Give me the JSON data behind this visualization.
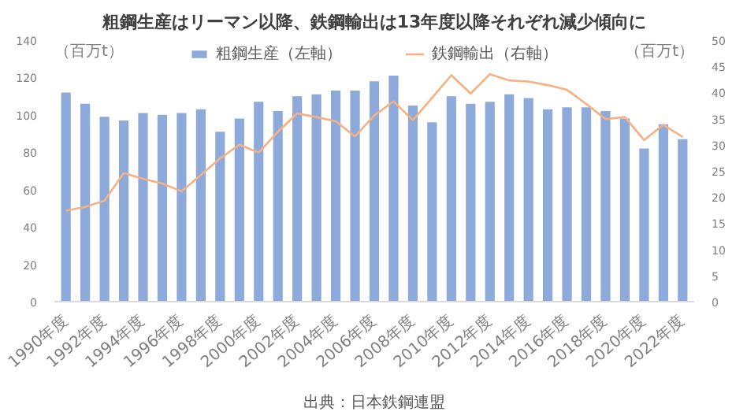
{
  "chart_data": {
    "type": "bar",
    "title": "粗鋼生産はリーマン以降、鉄鋼輸出は13年度以降それぞれ減少傾向に",
    "categories": [
      "1990年度",
      null,
      "1992年度",
      null,
      "1994年度",
      null,
      "1996年度",
      null,
      "1998年度",
      null,
      "2000年度",
      null,
      "2002年度",
      null,
      "2004年度",
      null,
      "2006年度",
      null,
      "2008年度",
      null,
      "2010年度",
      null,
      "2012年度",
      null,
      "2014年度",
      null,
      "2016年度",
      null,
      "2018年度",
      null,
      "2020年度",
      null,
      "2022年度"
    ],
    "series": [
      {
        "name": "粗鋼生産（左軸）",
        "color": "#8eaadb",
        "values": [
          112,
          106,
          99,
          97,
          101,
          100,
          101,
          103,
          91,
          98,
          107,
          102,
          110,
          111,
          113,
          113,
          118,
          121,
          105,
          96,
          110,
          106,
          107,
          111,
          109,
          103,
          104,
          104,
          102,
          98,
          82,
          95,
          87
        ]
      },
      {
        "name": "鉄鋼輸出（右軸）",
        "type": "line",
        "axis": "y2",
        "color": "#f4b183",
        "values": [
          17.4,
          18.1,
          19.3,
          24.6,
          23.5,
          22.6,
          21.1,
          24.2,
          27.4,
          30,
          28.5,
          32.5,
          36,
          35.3,
          34.5,
          31.6,
          35.6,
          38.3,
          34.7,
          39,
          43.3,
          39.8,
          43.5,
          42.3,
          42.1,
          41.4,
          40.5,
          37.8,
          34.9,
          35.3,
          30.9,
          33.8,
          31.5
        ]
      }
    ],
    "ylabel": "（百万t）",
    "y2label": "（百万t）",
    "ylim": [
      0,
      140
    ],
    "yticks": [
      0,
      20,
      40,
      60,
      80,
      100,
      120,
      140
    ],
    "y2lim": [
      0,
      50
    ],
    "y2ticks": [
      0,
      5,
      10,
      15,
      20,
      25,
      30,
      35,
      40,
      45,
      50
    ],
    "legend": "top",
    "grid": false,
    "annotations": [
      "出典：日本鉄鋼連盟"
    ]
  }
}
